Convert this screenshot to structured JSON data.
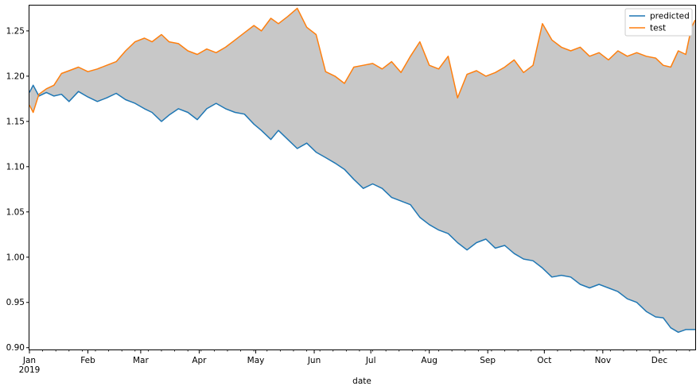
{
  "chart_data": {
    "type": "line",
    "title": "",
    "xlabel": "date",
    "ylabel": "",
    "x_tick_labels": [
      {
        "date": "2019-01-01",
        "label": "Jan",
        "sublabel": "2019"
      },
      {
        "date": "2019-02-01",
        "label": "Feb"
      },
      {
        "date": "2019-03-01",
        "label": "Mar"
      },
      {
        "date": "2019-04-01",
        "label": "Apr"
      },
      {
        "date": "2019-05-01",
        "label": "May"
      },
      {
        "date": "2019-06-01",
        "label": "Jun"
      },
      {
        "date": "2019-07-01",
        "label": "Jul"
      },
      {
        "date": "2019-08-01",
        "label": "Aug"
      },
      {
        "date": "2019-09-01",
        "label": "Sep"
      },
      {
        "date": "2019-10-01",
        "label": "Oct"
      },
      {
        "date": "2019-11-01",
        "label": "Nov"
      },
      {
        "date": "2019-12-01",
        "label": "Dec"
      }
    ],
    "y_ticks": [
      0.9,
      0.95,
      1.0,
      1.05,
      1.1,
      1.15,
      1.2,
      1.25
    ],
    "y_tick_labels": [
      "0.90",
      "0.95",
      "1.00",
      "1.05",
      "1.10",
      "1.15",
      "1.20",
      "1.25"
    ],
    "xlim": [
      "2019-01-01",
      "2019-12-20"
    ],
    "ylim": [
      0.898,
      1.278
    ],
    "grid": false,
    "legend_position": "top-right",
    "fill_between": {
      "series": [
        "predicted",
        "test"
      ],
      "color": "#c8c8c8"
    },
    "series": [
      {
        "name": "predicted",
        "color": "#1f77b4",
        "points": [
          [
            "2019-01-01",
            1.182
          ],
          [
            "2019-01-03",
            1.19
          ],
          [
            "2019-01-06",
            1.178
          ],
          [
            "2019-01-10",
            1.182
          ],
          [
            "2019-01-14",
            1.178
          ],
          [
            "2019-01-18",
            1.18
          ],
          [
            "2019-01-22",
            1.172
          ],
          [
            "2019-01-27",
            1.183
          ],
          [
            "2019-02-01",
            1.177
          ],
          [
            "2019-02-06",
            1.172
          ],
          [
            "2019-02-11",
            1.176
          ],
          [
            "2019-02-16",
            1.181
          ],
          [
            "2019-02-21",
            1.174
          ],
          [
            "2019-02-26",
            1.17
          ],
          [
            "2019-03-03",
            1.164
          ],
          [
            "2019-03-07",
            1.16
          ],
          [
            "2019-03-12",
            1.15
          ],
          [
            "2019-03-16",
            1.157
          ],
          [
            "2019-03-21",
            1.164
          ],
          [
            "2019-03-26",
            1.16
          ],
          [
            "2019-03-31",
            1.152
          ],
          [
            "2019-04-05",
            1.164
          ],
          [
            "2019-04-10",
            1.17
          ],
          [
            "2019-04-15",
            1.164
          ],
          [
            "2019-04-20",
            1.16
          ],
          [
            "2019-04-25",
            1.158
          ],
          [
            "2019-04-30",
            1.147
          ],
          [
            "2019-05-04",
            1.14
          ],
          [
            "2019-05-09",
            1.13
          ],
          [
            "2019-05-13",
            1.14
          ],
          [
            "2019-05-18",
            1.13
          ],
          [
            "2019-05-23",
            1.12
          ],
          [
            "2019-05-28",
            1.126
          ],
          [
            "2019-06-02",
            1.116
          ],
          [
            "2019-06-07",
            1.11
          ],
          [
            "2019-06-12",
            1.104
          ],
          [
            "2019-06-17",
            1.097
          ],
          [
            "2019-06-22",
            1.086
          ],
          [
            "2019-06-27",
            1.076
          ],
          [
            "2019-07-02",
            1.081
          ],
          [
            "2019-07-07",
            1.076
          ],
          [
            "2019-07-12",
            1.066
          ],
          [
            "2019-07-17",
            1.062
          ],
          [
            "2019-07-22",
            1.058
          ],
          [
            "2019-07-27",
            1.044
          ],
          [
            "2019-08-01",
            1.036
          ],
          [
            "2019-08-06",
            1.03
          ],
          [
            "2019-08-11",
            1.026
          ],
          [
            "2019-08-16",
            1.016
          ],
          [
            "2019-08-21",
            1.008
          ],
          [
            "2019-08-26",
            1.016
          ],
          [
            "2019-08-31",
            1.02
          ],
          [
            "2019-09-05",
            1.01
          ],
          [
            "2019-09-10",
            1.013
          ],
          [
            "2019-09-15",
            1.004
          ],
          [
            "2019-09-20",
            0.998
          ],
          [
            "2019-09-25",
            0.996
          ],
          [
            "2019-09-30",
            0.988
          ],
          [
            "2019-10-05",
            0.978
          ],
          [
            "2019-10-10",
            0.98
          ],
          [
            "2019-10-15",
            0.978
          ],
          [
            "2019-10-20",
            0.97
          ],
          [
            "2019-10-25",
            0.966
          ],
          [
            "2019-10-30",
            0.97
          ],
          [
            "2019-11-04",
            0.966
          ],
          [
            "2019-11-09",
            0.962
          ],
          [
            "2019-11-14",
            0.954
          ],
          [
            "2019-11-19",
            0.95
          ],
          [
            "2019-11-24",
            0.94
          ],
          [
            "2019-11-29",
            0.934
          ],
          [
            "2019-12-03",
            0.933
          ],
          [
            "2019-12-07",
            0.922
          ],
          [
            "2019-12-11",
            0.917
          ],
          [
            "2019-12-15",
            0.92
          ],
          [
            "2019-12-20",
            0.92
          ]
        ]
      },
      {
        "name": "test",
        "color": "#ff7f0e",
        "points": [
          [
            "2019-01-01",
            1.168
          ],
          [
            "2019-01-03",
            1.16
          ],
          [
            "2019-01-06",
            1.18
          ],
          [
            "2019-01-10",
            1.186
          ],
          [
            "2019-01-14",
            1.19
          ],
          [
            "2019-01-18",
            1.203
          ],
          [
            "2019-01-22",
            1.206
          ],
          [
            "2019-01-27",
            1.21
          ],
          [
            "2019-02-01",
            1.205
          ],
          [
            "2019-02-06",
            1.208
          ],
          [
            "2019-02-11",
            1.212
          ],
          [
            "2019-02-16",
            1.216
          ],
          [
            "2019-02-21",
            1.228
          ],
          [
            "2019-02-26",
            1.238
          ],
          [
            "2019-03-03",
            1.242
          ],
          [
            "2019-03-07",
            1.238
          ],
          [
            "2019-03-12",
            1.246
          ],
          [
            "2019-03-16",
            1.238
          ],
          [
            "2019-03-21",
            1.236
          ],
          [
            "2019-03-26",
            1.228
          ],
          [
            "2019-03-31",
            1.224
          ],
          [
            "2019-04-05",
            1.23
          ],
          [
            "2019-04-10",
            1.226
          ],
          [
            "2019-04-15",
            1.232
          ],
          [
            "2019-04-20",
            1.24
          ],
          [
            "2019-04-25",
            1.248
          ],
          [
            "2019-04-30",
            1.256
          ],
          [
            "2019-05-04",
            1.25
          ],
          [
            "2019-05-09",
            1.264
          ],
          [
            "2019-05-13",
            1.258
          ],
          [
            "2019-05-18",
            1.266
          ],
          [
            "2019-05-23",
            1.275
          ],
          [
            "2019-05-28",
            1.254
          ],
          [
            "2019-06-02",
            1.246
          ],
          [
            "2019-06-07",
            1.205
          ],
          [
            "2019-06-12",
            1.2
          ],
          [
            "2019-06-17",
            1.192
          ],
          [
            "2019-06-22",
            1.21
          ],
          [
            "2019-06-27",
            1.212
          ],
          [
            "2019-07-02",
            1.214
          ],
          [
            "2019-07-07",
            1.208
          ],
          [
            "2019-07-12",
            1.216
          ],
          [
            "2019-07-17",
            1.204
          ],
          [
            "2019-07-22",
            1.222
          ],
          [
            "2019-07-27",
            1.238
          ],
          [
            "2019-08-01",
            1.212
          ],
          [
            "2019-08-06",
            1.208
          ],
          [
            "2019-08-11",
            1.222
          ],
          [
            "2019-08-16",
            1.176
          ],
          [
            "2019-08-21",
            1.202
          ],
          [
            "2019-08-26",
            1.206
          ],
          [
            "2019-08-31",
            1.2
          ],
          [
            "2019-09-05",
            1.204
          ],
          [
            "2019-09-10",
            1.21
          ],
          [
            "2019-09-15",
            1.218
          ],
          [
            "2019-09-20",
            1.204
          ],
          [
            "2019-09-25",
            1.212
          ],
          [
            "2019-09-30",
            1.258
          ],
          [
            "2019-10-05",
            1.24
          ],
          [
            "2019-10-10",
            1.232
          ],
          [
            "2019-10-15",
            1.228
          ],
          [
            "2019-10-20",
            1.232
          ],
          [
            "2019-10-25",
            1.222
          ],
          [
            "2019-10-30",
            1.226
          ],
          [
            "2019-11-04",
            1.218
          ],
          [
            "2019-11-09",
            1.228
          ],
          [
            "2019-11-14",
            1.222
          ],
          [
            "2019-11-19",
            1.226
          ],
          [
            "2019-11-24",
            1.222
          ],
          [
            "2019-11-29",
            1.22
          ],
          [
            "2019-12-03",
            1.212
          ],
          [
            "2019-12-07",
            1.21
          ],
          [
            "2019-12-11",
            1.228
          ],
          [
            "2019-12-15",
            1.224
          ],
          [
            "2019-12-18",
            1.254
          ],
          [
            "2019-12-20",
            1.262
          ]
        ]
      }
    ]
  }
}
